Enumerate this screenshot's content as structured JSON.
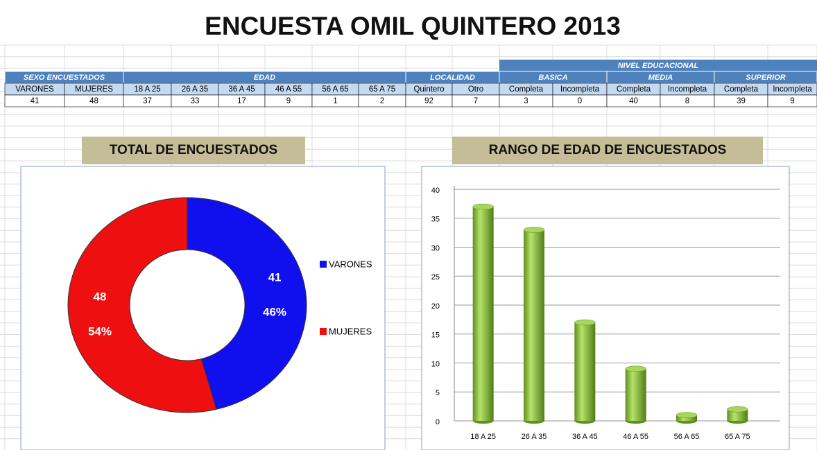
{
  "title": "ENCUESTA OMIL QUINTERO  2013",
  "table": {
    "group_header": "NIVEL EDUCACIONAL",
    "headers": [
      "SEXO ENCUESTADOS",
      "EDAD",
      "LOCALIDAD",
      "BASICA",
      "MEDIA",
      "SUPERIOR"
    ],
    "columns": [
      "VARONES",
      "MUJERES",
      "18 A 25",
      "26 A 35",
      "36 A 45",
      "46 A 55",
      "56 A 65",
      "65 A 75",
      "Quintero",
      "Otro",
      "Completa",
      "Incompleta",
      "Completa",
      "Incompleta",
      "Completa",
      "Incompleta"
    ],
    "values": [
      41,
      48,
      37,
      33,
      17,
      9,
      1,
      2,
      92,
      7,
      3,
      0,
      40,
      8,
      39,
      9
    ]
  },
  "chart_data": [
    {
      "type": "pie",
      "title": "TOTAL DE ENCUESTADOS",
      "categories": [
        "VARONES",
        "MUJERES"
      ],
      "values": [
        41,
        48
      ],
      "percent_labels": [
        "46%",
        "54%"
      ],
      "colors": [
        "#1010ee",
        "#ee1010"
      ]
    },
    {
      "type": "bar",
      "title": "RANGO DE EDAD DE ENCUESTADOS",
      "categories": [
        "18 A 25",
        "26 A 35",
        "36 A 45",
        "46 A 55",
        "56 A 65",
        "65 A 75"
      ],
      "values": [
        37,
        33,
        17,
        9,
        1,
        2
      ],
      "color": "#8cc63f",
      "ylim": [
        0,
        40
      ],
      "yticks": [
        0,
        5,
        10,
        15,
        20,
        25,
        30,
        35,
        40
      ],
      "grid": true
    }
  ]
}
